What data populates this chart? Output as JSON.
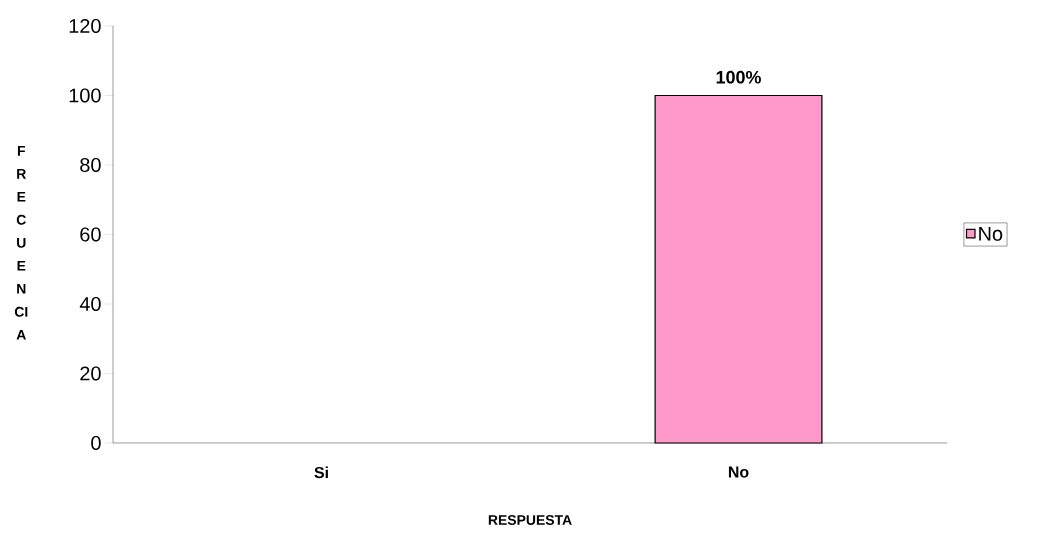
{
  "chart_data": {
    "type": "bar",
    "xlabel": "RESPUESTA",
    "ylabel": "FRECUENCIA",
    "categories": [
      "Si",
      "No"
    ],
    "series": [
      {
        "name": "No",
        "color": "#ff99cc",
        "values": [
          null,
          100
        ],
        "value_labels": [
          null,
          "100%"
        ]
      }
    ],
    "ylim": [
      0,
      120
    ],
    "yticks": [
      0,
      20,
      40,
      60,
      80,
      100,
      120
    ],
    "grid": false,
    "legend": "right"
  }
}
